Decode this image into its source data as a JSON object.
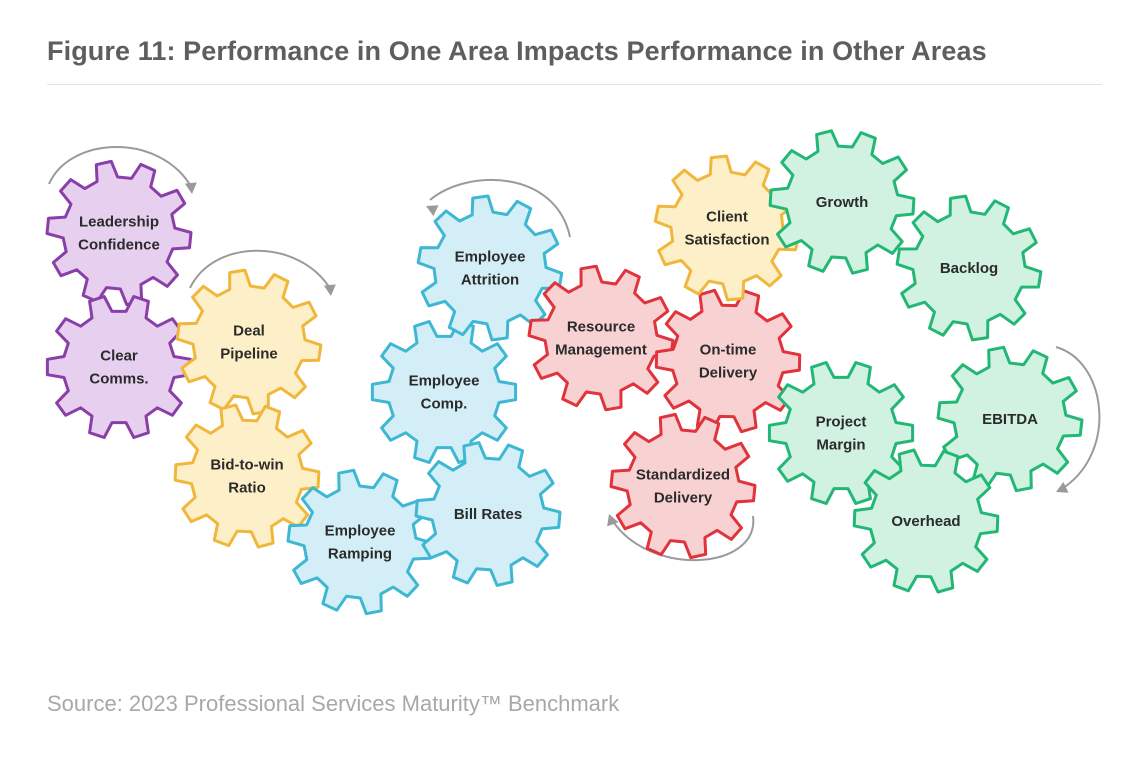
{
  "title": "Figure 11: Performance in One Area Impacts Performance in Other Areas",
  "source": "Source: 2023 Professional Services Maturity™ Benchmark",
  "colors": {
    "purple": {
      "stroke": "#8a3fa8",
      "fill": "#e7d0ef"
    },
    "yellow": {
      "stroke": "#f0b73c",
      "fill": "#fdf0c8"
    },
    "cyan": {
      "stroke": "#3db7d2",
      "fill": "#d3eef6"
    },
    "red": {
      "stroke": "#e0333c",
      "fill": "#f8d2d3"
    },
    "green": {
      "stroke": "#23b775",
      "fill": "#d1f1e1"
    },
    "arrow": "#9a9a9a",
    "title": "#5e5e5e",
    "source": "#a8a8a8"
  },
  "gears": [
    {
      "id": "leadership-confidence",
      "lines": [
        "Leadership",
        "Confidence"
      ],
      "color": "purple"
    },
    {
      "id": "clear-comms",
      "lines": [
        "Clear",
        "Comms."
      ],
      "color": "purple"
    },
    {
      "id": "deal-pipeline",
      "lines": [
        "Deal",
        "Pipeline"
      ],
      "color": "yellow"
    },
    {
      "id": "bid-to-win-ratio",
      "lines": [
        "Bid-to-win",
        "Ratio"
      ],
      "color": "yellow"
    },
    {
      "id": "employee-ramping",
      "lines": [
        "Employee",
        "Ramping"
      ],
      "color": "cyan"
    },
    {
      "id": "employee-comp",
      "lines": [
        "Employee",
        "Comp."
      ],
      "color": "cyan"
    },
    {
      "id": "employee-attrition",
      "lines": [
        "Employee",
        "Attrition"
      ],
      "color": "cyan"
    },
    {
      "id": "bill-rates",
      "lines": [
        "Bill Rates"
      ],
      "color": "cyan"
    },
    {
      "id": "resource-management",
      "lines": [
        "Resource",
        "Management"
      ],
      "color": "red"
    },
    {
      "id": "on-time-delivery",
      "lines": [
        "On-time",
        "Delivery"
      ],
      "color": "red"
    },
    {
      "id": "standardized-delivery",
      "lines": [
        "Standardized",
        "Delivery"
      ],
      "color": "red"
    },
    {
      "id": "client-satisfaction",
      "lines": [
        "Client",
        "Satisfaction"
      ],
      "color": "yellow"
    },
    {
      "id": "growth",
      "lines": [
        "Growth"
      ],
      "color": "green"
    },
    {
      "id": "backlog",
      "lines": [
        "Backlog"
      ],
      "color": "green"
    },
    {
      "id": "project-margin",
      "lines": [
        "Project",
        "Margin"
      ],
      "color": "green"
    },
    {
      "id": "ebitda",
      "lines": [
        "EBITDA"
      ],
      "color": "green"
    },
    {
      "id": "overhead",
      "lines": [
        "Overhead"
      ],
      "color": "green"
    }
  ],
  "arrows": [
    {
      "id": "leadership-rotation",
      "direction": "clockwise"
    },
    {
      "id": "pipeline-rotation",
      "direction": "clockwise"
    },
    {
      "id": "attrition-rotation",
      "direction": "counter-clockwise"
    },
    {
      "id": "delivery-rotation",
      "direction": "counter-clockwise"
    },
    {
      "id": "ebitda-rotation",
      "direction": "clockwise"
    }
  ]
}
